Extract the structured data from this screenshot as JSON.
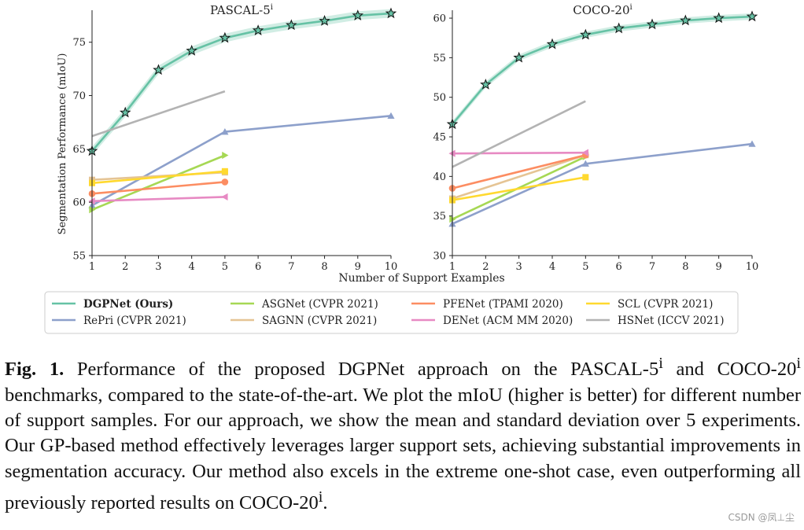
{
  "chart_data": [
    {
      "type": "line",
      "title": "PASCAL-5",
      "title_sup": "i",
      "ylabel": "Segmentation Performance (mIoU)",
      "xlabel": "",
      "xlim": [
        1,
        10
      ],
      "ylim": [
        55,
        78
      ],
      "xticks": [
        1,
        2,
        3,
        4,
        5,
        6,
        7,
        8,
        9,
        10
      ],
      "yticks": [
        55,
        60,
        65,
        70,
        75
      ],
      "series": [
        {
          "name": "DGPNet (Ours)",
          "x": [
            1,
            2,
            3,
            4,
            5,
            6,
            7,
            8,
            9,
            10
          ],
          "y": [
            64.8,
            68.4,
            72.4,
            74.2,
            75.4,
            76.1,
            76.6,
            77.0,
            77.5,
            77.7
          ],
          "band": 0.4,
          "color": "#66c2a5",
          "marker": "star"
        },
        {
          "name": "RePri (CVPR 2021)",
          "x": [
            1,
            5,
            10
          ],
          "y": [
            59.7,
            66.6,
            68.1
          ],
          "color": "#8da0cb",
          "marker": "triangle"
        },
        {
          "name": "ASGNet (CVPR 2021)",
          "x": [
            1,
            5
          ],
          "y": [
            59.3,
            64.4
          ],
          "color": "#a6d854",
          "marker": "triangle-right"
        },
        {
          "name": "SAGNN (CVPR 2021)",
          "x": [
            1,
            5
          ],
          "y": [
            62.1,
            62.8
          ],
          "color": "#e5c494",
          "marker": "square"
        },
        {
          "name": "PFENet (TPAMI 2020)",
          "x": [
            1,
            5
          ],
          "y": [
            60.8,
            61.9
          ],
          "color": "#fc8d62",
          "marker": "circle"
        },
        {
          "name": "DENet (ACM MM 2020)",
          "x": [
            1,
            5
          ],
          "y": [
            60.1,
            60.5
          ],
          "color": "#e78ac3",
          "marker": "triangle-left"
        },
        {
          "name": "SCL (CVPR 2021)",
          "x": [
            1,
            5
          ],
          "y": [
            61.8,
            62.9
          ],
          "color": "#ffd92f",
          "marker": "square"
        },
        {
          "name": "HSNet (ICCV 2021)",
          "x": [
            1,
            5
          ],
          "y": [
            66.2,
            70.4
          ],
          "color": "#b3b3b3",
          "marker": "none"
        }
      ]
    },
    {
      "type": "line",
      "title": "COCO-20",
      "title_sup": "i",
      "ylabel": "",
      "xlabel": "Number of Support Examples",
      "xlim": [
        1,
        10
      ],
      "ylim": [
        30,
        61
      ],
      "xticks": [
        1,
        2,
        3,
        4,
        5,
        6,
        7,
        8,
        9,
        10
      ],
      "yticks": [
        30,
        35,
        40,
        45,
        50,
        55,
        60
      ],
      "series": [
        {
          "name": "DGPNet (Ours)",
          "x": [
            1,
            2,
            3,
            4,
            5,
            6,
            7,
            8,
            9,
            10
          ],
          "y": [
            46.6,
            51.6,
            55.0,
            56.7,
            57.9,
            58.7,
            59.2,
            59.7,
            60.0,
            60.2
          ],
          "band": 0.4,
          "color": "#66c2a5",
          "marker": "star"
        },
        {
          "name": "RePri (CVPR 2021)",
          "x": [
            1,
            5,
            10
          ],
          "y": [
            34.0,
            41.6,
            44.1
          ],
          "color": "#8da0cb",
          "marker": "triangle"
        },
        {
          "name": "ASGNet (CVPR 2021)",
          "x": [
            1,
            5
          ],
          "y": [
            34.6,
            42.5
          ],
          "color": "#a6d854",
          "marker": "triangle-right"
        },
        {
          "name": "SAGNN (CVPR 2021)",
          "x": [
            1,
            5
          ],
          "y": [
            37.2,
            42.7
          ],
          "color": "#e5c494",
          "marker": "square"
        },
        {
          "name": "PFENet (TPAMI 2020)",
          "x": [
            1,
            5
          ],
          "y": [
            38.5,
            42.7
          ],
          "color": "#fc8d62",
          "marker": "circle"
        },
        {
          "name": "DENet (ACM MM 2020)",
          "x": [
            1,
            5
          ],
          "y": [
            42.9,
            43.0
          ],
          "color": "#e78ac3",
          "marker": "triangle-left"
        },
        {
          "name": "SCL (CVPR 2021)",
          "x": [
            1,
            5
          ],
          "y": [
            37.0,
            39.9
          ],
          "color": "#ffd92f",
          "marker": "square"
        },
        {
          "name": "HSNet (ICCV 2021)",
          "x": [
            1,
            5
          ],
          "y": [
            41.2,
            49.5
          ],
          "color": "#b3b3b3",
          "marker": "none"
        }
      ]
    }
  ],
  "legend": {
    "placement": "bottom",
    "entries": [
      {
        "label": "DGPNet (Ours)",
        "color": "#66c2a5",
        "bold": true
      },
      {
        "label": "RePri (CVPR 2021)",
        "color": "#8da0cb"
      },
      {
        "label": "ASGNet (CVPR 2021)",
        "color": "#a6d854"
      },
      {
        "label": "SAGNN (CVPR 2021)",
        "color": "#e5c494"
      },
      {
        "label": "PFENet (TPAMI 2020)",
        "color": "#fc8d62"
      },
      {
        "label": "DENet (ACM MM 2020)",
        "color": "#e78ac3"
      },
      {
        "label": "SCL (CVPR 2021)",
        "color": "#ffd92f"
      },
      {
        "label": "HSNet (ICCV 2021)",
        "color": "#b3b3b3"
      }
    ]
  },
  "caption": {
    "label": "Fig. 1.",
    "t1": " Performance of the proposed DGPNet approach on the PASCAL-5",
    "s1": "i",
    "t2": " and COCO-20",
    "s2": "i",
    "t3": " benchmarks, compared to the state-of-the-art. We plot the mIoU (higher is better) for different number of support samples. For our approach, we show the mean and standard deviation over 5 experiments. Our GP-based method effectively leverages larger support sets, achieving substantial improvements in segmentation accuracy. Our method also excels in the extreme one-shot case, even outperforming all previously reported results on COCO-20",
    "s3": "i",
    "t4": "."
  },
  "watermark": "CSDN @凤⊥尘"
}
